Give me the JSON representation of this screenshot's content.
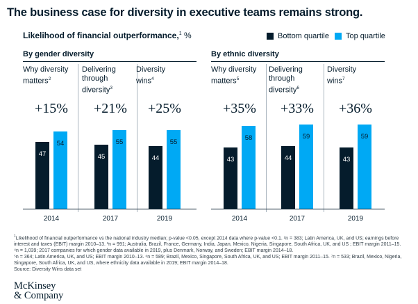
{
  "title": "The business case for diversity in executive teams remains strong.",
  "subtitle": "Likelihood of financial outperformance,",
  "subtitle_sup": "1",
  "subtitle_unit": " %",
  "legend": [
    {
      "label": "Bottom quartile",
      "color": "#051c2c"
    },
    {
      "label": "Top quartile",
      "color": "#00a9f4"
    }
  ],
  "sections": [
    "By gender diversity",
    "By ethnic diversity"
  ],
  "chart_data": {
    "type": "bar",
    "title": "The business case for diversity in executive teams remains strong.",
    "ylabel": "Likelihood of financial outperformance, %",
    "ylim": [
      0,
      60
    ],
    "series_names": [
      "Bottom quartile",
      "Top quartile"
    ],
    "panels": [
      {
        "group": "By gender diversity",
        "title_lines": [
          "Why diversity",
          "matters"
        ],
        "sup": "2",
        "uplift": "+15%",
        "year": "2014",
        "bottom": 47,
        "top": 54
      },
      {
        "group": "By gender diversity",
        "title_lines": [
          "Delivering",
          "through",
          "diversity"
        ],
        "sup": "3",
        "uplift": "+21%",
        "year": "2017",
        "bottom": 45,
        "top": 55
      },
      {
        "group": "By gender diversity",
        "title_lines": [
          "Diversity",
          "wins"
        ],
        "sup": "4",
        "uplift": "+25%",
        "year": "2019",
        "bottom": 44,
        "top": 55
      },
      {
        "group": "By ethnic diversity",
        "title_lines": [
          "Why diversity",
          "matters"
        ],
        "sup": "5",
        "uplift": "+35%",
        "year": "2014",
        "bottom": 43,
        "top": 58
      },
      {
        "group": "By ethnic diversity",
        "title_lines": [
          "Delivering",
          "through",
          "diversity"
        ],
        "sup": "6",
        "uplift": "+33%",
        "year": "2017",
        "bottom": 44,
        "top": 59
      },
      {
        "group": "By ethnic diversity",
        "title_lines": [
          "Diversity",
          "wins"
        ],
        "sup": "7",
        "uplift": "+36%",
        "year": "2019",
        "bottom": 43,
        "top": 59
      }
    ]
  },
  "footnotes": [
    "Likelihood of financial outperformance vs the national industry median; p-value <0.05, except 2014 data where p-value <0.1. ²n = 383; Latin America, UK, and US; earnings before interest and taxes (EBIT) margin 2010–13. ³n = 991; Australia, Brazil, France, Germany, India, Japan, Mexico, Nigeria, Singapore, South Africa, UK, and US ; EBIT margin 2011–15. ⁴n = 1,039; 2017 companies for which gender data available in 2019, plus Denmark, Norway, and Sweden; EBIT margin 2014–18.",
    "⁵n = 364; Latin America, UK, and US; EBIT margin 2010–13. ⁶n = 589; Brazil, Mexico, Singapore, South Africa, UK, and US; EBIT margin 2011–15. ⁷n = 533; Brazil, Mexico, Nigeria, Singapore, South Africa, UK, and US, where ethnicity data available in 2019; EBIT margin 2014–18.",
    "Source: Diversity Wins data set"
  ],
  "footnote_first_sup": "1",
  "logo_lines": [
    "McKinsey",
    "& Company"
  ]
}
